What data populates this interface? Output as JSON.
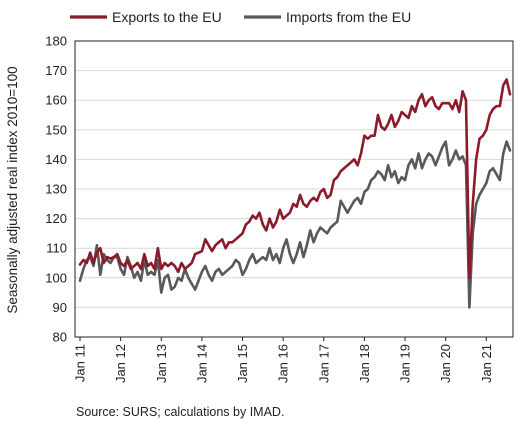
{
  "chart_data": {
    "type": "line",
    "title": "",
    "ylabel": "Seasonally adjusted real index 2010=100",
    "ylim": [
      80,
      180
    ],
    "y_ticks": [
      80,
      90,
      100,
      110,
      120,
      130,
      140,
      150,
      160,
      170,
      180
    ],
    "x_range": [
      "Jan 11",
      "Apr 21"
    ],
    "x_tick_labels": [
      "Jan 11",
      "Jan 12",
      "Jan 13",
      "Jan 14",
      "Jan 15",
      "Jan 16",
      "Jan 17",
      "Jan 18",
      "Jan 19",
      "Jan 20",
      "Jan 21"
    ],
    "legend_position": "top",
    "grid": true,
    "source": "Source: SURS; calculations by IMAD.",
    "series": [
      {
        "name": "Exports to the EU",
        "color": "#8b1a2b",
        "values": [
          104.5,
          106,
          105,
          108.5,
          105,
          108.5,
          110,
          105,
          107,
          106.5,
          107,
          108,
          105,
          104,
          106,
          103,
          104,
          105,
          103,
          108,
          104,
          105,
          103,
          110,
          103,
          105,
          104,
          105,
          104,
          102,
          105,
          103,
          104,
          105,
          108,
          108.5,
          109,
          113,
          111,
          109,
          111,
          112,
          113,
          110,
          112,
          112,
          113,
          114,
          115,
          118,
          119,
          121,
          120,
          122,
          118,
          116,
          120,
          117,
          119,
          123,
          120,
          121,
          122,
          125,
          124,
          128,
          125,
          124,
          126,
          127,
          126,
          129,
          130,
          127,
          128,
          133,
          134,
          136,
          137,
          138,
          139,
          140,
          138,
          142,
          148,
          147,
          148,
          148,
          155,
          151,
          150,
          152,
          155,
          151,
          153,
          156,
          155,
          154,
          158,
          156,
          160,
          162,
          158,
          160,
          161,
          158,
          157,
          159,
          159,
          159,
          157,
          160,
          156,
          163,
          160,
          100,
          125,
          140,
          147,
          148,
          150,
          155,
          157,
          158,
          158,
          165,
          167,
          162
        ]
      },
      {
        "name": "Imports from the EU",
        "color": "#595959",
        "values": [
          99,
          103,
          106,
          107,
          104,
          111,
          101,
          108,
          106,
          105,
          107,
          107,
          103,
          101,
          107,
          104,
          100,
          102,
          99,
          106,
          101,
          102,
          101,
          106,
          95,
          100,
          101,
          96,
          97,
          100,
          99,
          103,
          100,
          98,
          96,
          99,
          102,
          104,
          101,
          99,
          102,
          103,
          101,
          102,
          103,
          104,
          106,
          105,
          101,
          103,
          106,
          108,
          105,
          106,
          107,
          106,
          110,
          106,
          108,
          105,
          110,
          113,
          108,
          105,
          108,
          112,
          107,
          111,
          116,
          112,
          115,
          117,
          116,
          115,
          117,
          118,
          119,
          126,
          124,
          122,
          124,
          126,
          127,
          125,
          129,
          130,
          133,
          134,
          136,
          135,
          133,
          138,
          134,
          136,
          132,
          134,
          133,
          138,
          140,
          137,
          142,
          137,
          140,
          142,
          141,
          138,
          141,
          144,
          146,
          138,
          140,
          143,
          140,
          141,
          138,
          90,
          115,
          125,
          128,
          130,
          132,
          136,
          137,
          135,
          133,
          142,
          146,
          143
        ]
      }
    ]
  }
}
